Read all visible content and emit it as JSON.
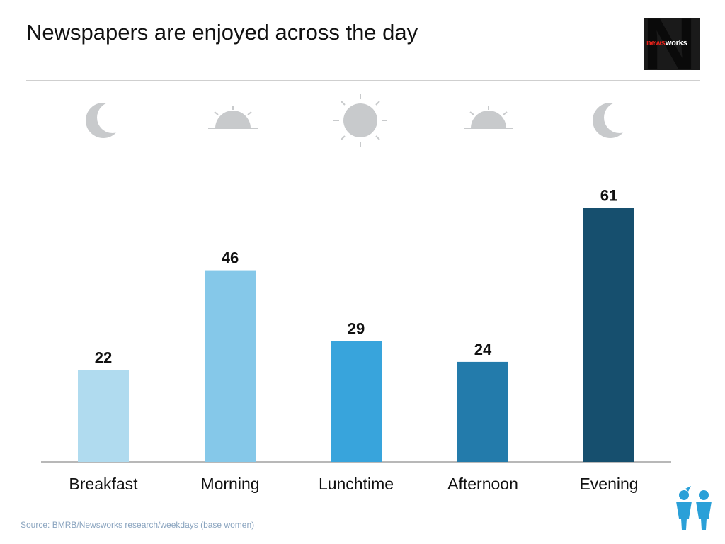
{
  "title": "Newspapers are enjoyed across the day",
  "logo": {
    "prefix": "news",
    "suffix": "works",
    "letter": "N",
    "accent_color": "#e3231b"
  },
  "icons": [
    "moon-icon",
    "sunrise-icon",
    "sun-icon",
    "sunset-icon",
    "moon-icon"
  ],
  "chart_data": {
    "type": "bar",
    "title": "",
    "xlabel": "",
    "ylabel": "",
    "categories": [
      "Breakfast",
      "Morning",
      "Lunchtime",
      "Afternoon",
      "Evening"
    ],
    "values": [
      22,
      46,
      29,
      24,
      61
    ],
    "colors": [
      "#b0dbef",
      "#85c8e9",
      "#38a4dc",
      "#237bab",
      "#164f6e"
    ],
    "ylim": [
      0,
      66
    ],
    "grid": false,
    "legend": "none"
  },
  "source": "Source: BMRB/Newsworks research/weekdays (base women)",
  "people_icon": "people-icon"
}
